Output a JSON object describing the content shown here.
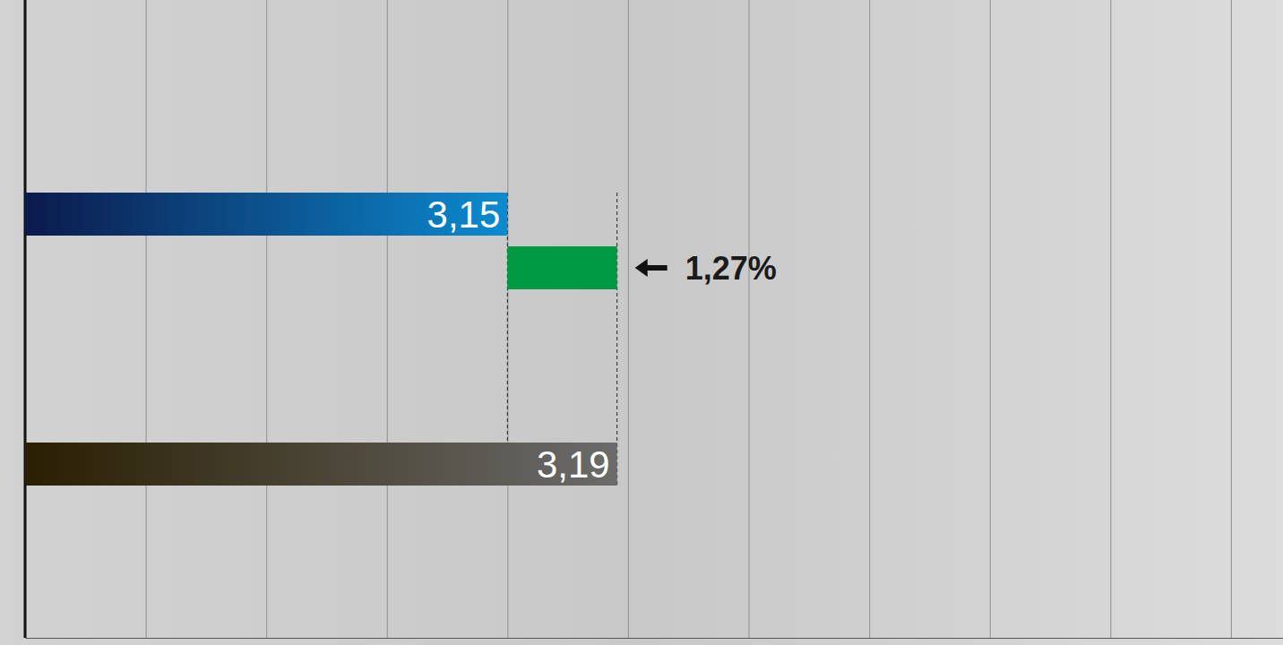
{
  "chart_data": {
    "type": "bar",
    "orientation": "horizontal",
    "categories": [
      null,
      null
    ],
    "values": [
      3.15,
      3.19
    ],
    "value_labels": [
      "3,15",
      "3,19"
    ],
    "data_labels": true,
    "colors": [
      "#0b8bd0",
      "#6b6b6b"
    ],
    "xlim": [
      2.974,
      3.433
    ],
    "xticks": [
      2.974,
      3.018,
      3.062,
      3.106,
      3.15,
      3.194,
      3.238,
      3.282,
      3.326,
      3.37,
      3.414
    ],
    "grid": true,
    "tick_labels": false,
    "annotations": [
      {
        "text": "1,27%"
      }
    ]
  }
}
